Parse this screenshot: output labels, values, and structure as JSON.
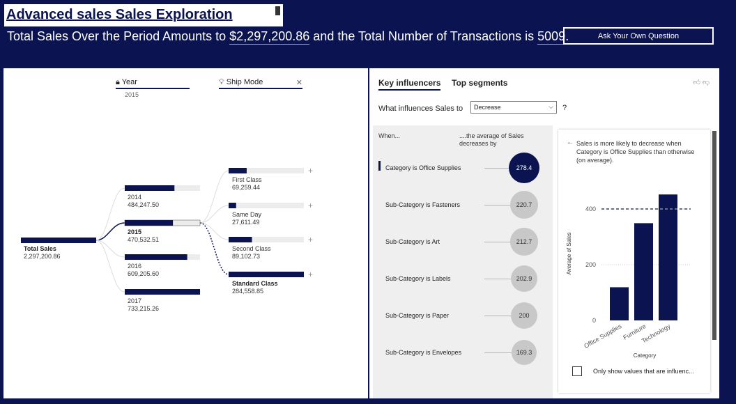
{
  "header": {
    "title": "Advanced sales Sales Exploration ",
    "summary_pre": "Total Sales Over the Period Amounts to ",
    "summary_sales": "$2,297,200.86",
    "summary_mid": " and the Total Number of Transactions is ",
    "summary_count": "5009",
    "summary_end": ".",
    "ask_button": "Ask Your Own Question"
  },
  "decomp": {
    "year_header": "Year",
    "year_sub": "2015",
    "ship_header": "Ship Mode",
    "root": {
      "label": "Total Sales",
      "value": "2,297,200.86"
    },
    "years": [
      {
        "label": "2014",
        "value": "484,247.50",
        "fraction": 0.66
      },
      {
        "label": "2015",
        "value": "470,532.51",
        "fraction": 0.64,
        "selected": true
      },
      {
        "label": "2016",
        "value": "609,205.60",
        "fraction": 0.83
      },
      {
        "label": "2017",
        "value": "733,215.26",
        "fraction": 1.0
      }
    ],
    "ship_modes": [
      {
        "label": "First Class",
        "value": "69,259.44",
        "fraction": 0.24
      },
      {
        "label": "Same Day",
        "value": "27,611.49",
        "fraction": 0.1
      },
      {
        "label": "Second Class",
        "value": "89,102.73",
        "fraction": 0.31
      },
      {
        "label": "Standard Class",
        "value": "284,558.85",
        "fraction": 1.0,
        "selected": true
      }
    ]
  },
  "key_influencers": {
    "tab_key": "Key influencers",
    "tab_top": "Top segments",
    "what_label": "What influences Sales to",
    "direction": "Decrease",
    "help": "?",
    "col_when": "When...",
    "col_avg": "....the average of Sales decreases by",
    "rows": [
      {
        "label": "Category is Office Supplies",
        "value": "278.4",
        "selected": true
      },
      {
        "label": "Sub-Category is Fasteners",
        "value": "220.7"
      },
      {
        "label": "Sub-Category is Art",
        "value": "212.7"
      },
      {
        "label": "Sub-Category is Labels",
        "value": "202.9"
      },
      {
        "label": "Sub-Category is Paper",
        "value": "200"
      },
      {
        "label": "Sub-Category is Envelopes",
        "value": "169.3"
      }
    ],
    "detail_text": "Sales is more likely to decrease when Category is Office Supplies than otherwise (on average).",
    "only_show": "Only show values that are influenc..."
  },
  "chart_data": {
    "type": "bar",
    "categories": [
      "Office Supplies",
      "Furniture",
      "Technology"
    ],
    "values": [
      119,
      349,
      452
    ],
    "reference_line": 400,
    "ylabel": "Average of Sales",
    "xlabel": "Category",
    "yticks": [
      0,
      200,
      400
    ],
    "ylim": [
      0,
      480
    ],
    "bar_color": "#0b1350"
  },
  "colors": {
    "navy": "#0b1350",
    "bubble_grey": "#c8c8c8",
    "bar_bg": "#ececec"
  }
}
